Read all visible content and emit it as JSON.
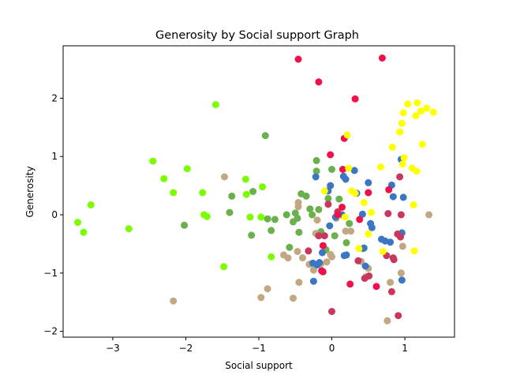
{
  "chart_data": {
    "type": "scatter",
    "title": "Generosity by Social support Graph",
    "xlabel": "Social support",
    "ylabel": "Generosity",
    "xlim": [
      -3.68,
      1.68
    ],
    "ylim": [
      -2.1,
      2.9
    ],
    "xticks": [
      -3,
      -2,
      -1,
      0,
      1
    ],
    "yticks": [
      -2,
      -1,
      0,
      1,
      2
    ],
    "xtick_labels": [
      "−3",
      "−2",
      "−1",
      "0",
      "1"
    ],
    "ytick_labels": [
      "−2",
      "−1",
      "0",
      "1",
      "2"
    ],
    "grid": false,
    "legend": "none",
    "series": [
      {
        "color": "#7cfc00",
        "points": [
          [
            -3.48,
            -0.13
          ],
          [
            -3.4,
            -0.3
          ],
          [
            -3.3,
            0.17
          ],
          [
            -2.78,
            -0.24
          ],
          [
            -2.45,
            0.92
          ],
          [
            -2.3,
            0.62
          ],
          [
            -2.17,
            0.38
          ],
          [
            -1.98,
            0.79
          ],
          [
            -1.77,
            0.38
          ],
          [
            -1.75,
            0.0
          ],
          [
            -1.71,
            -0.03
          ],
          [
            -1.59,
            1.89
          ],
          [
            -1.48,
            -0.89
          ],
          [
            -1.18,
            0.61
          ],
          [
            -1.17,
            0.35
          ],
          [
            -1.12,
            -0.04
          ],
          [
            -0.97,
            -0.04
          ],
          [
            -0.95,
            0.48
          ],
          [
            -0.83,
            -0.72
          ]
        ]
      },
      {
        "color": "#6ab04c",
        "points": [
          [
            -2.02,
            -0.18
          ],
          [
            -1.4,
            0.04
          ],
          [
            -1.37,
            0.32
          ],
          [
            -1.1,
            -0.35
          ],
          [
            -1.08,
            0.4
          ],
          [
            -0.91,
            1.36
          ],
          [
            -0.88,
            -0.07
          ],
          [
            -0.83,
            -0.27
          ],
          [
            -0.78,
            -0.08
          ],
          [
            -0.62,
            0.0
          ],
          [
            -0.58,
            -0.56
          ],
          [
            -0.53,
            -0.12
          ],
          [
            -0.5,
            0.03
          ],
          [
            -0.47,
            -0.06
          ],
          [
            -0.45,
            -0.3
          ],
          [
            -0.42,
            0.36
          ],
          [
            -0.35,
            0.32
          ],
          [
            -0.3,
            0.1
          ],
          [
            -0.27,
            0.0
          ],
          [
            -0.21,
            0.93
          ],
          [
            -0.21,
            0.75
          ],
          [
            -0.18,
            0.09
          ],
          [
            -0.15,
            -0.29
          ],
          [
            -0.08,
            -0.6
          ],
          [
            -0.05,
            0.28
          ],
          [
            0.0,
            0.78
          ],
          [
            0.04,
            -0.36
          ],
          [
            0.1,
            0.27
          ],
          [
            0.2,
            -0.48
          ],
          [
            0.24,
            -0.15
          ],
          [
            0.43,
            -0.58
          ]
        ]
      },
      {
        "color": "#c2a882",
        "points": [
          [
            -2.17,
            -1.48
          ],
          [
            -1.47,
            0.65
          ],
          [
            -0.97,
            -1.42
          ],
          [
            -0.88,
            -1.27
          ],
          [
            -0.66,
            -0.69
          ],
          [
            -0.6,
            -0.74
          ],
          [
            -0.53,
            -1.43
          ],
          [
            -0.47,
            -0.63
          ],
          [
            -0.46,
            0.21
          ],
          [
            -0.46,
            0.14
          ],
          [
            -0.45,
            -1.16
          ],
          [
            -0.4,
            -0.74
          ],
          [
            -0.31,
            -0.85
          ],
          [
            -0.25,
            -0.95
          ],
          [
            -0.22,
            -0.32
          ],
          [
            -0.2,
            -0.09
          ],
          [
            -0.15,
            -0.84
          ],
          [
            -0.07,
            -0.81
          ],
          [
            -0.02,
            -0.68
          ],
          [
            0.0,
            -0.72
          ],
          [
            0.06,
            -0.06
          ],
          [
            0.19,
            -0.28
          ],
          [
            0.26,
            -0.28
          ],
          [
            0.4,
            -0.8
          ],
          [
            0.47,
            -1.06
          ],
          [
            0.5,
            -0.92
          ],
          [
            0.76,
            -1.82
          ],
          [
            0.8,
            -1.16
          ],
          [
            0.95,
            -1.0
          ],
          [
            0.97,
            -0.54
          ],
          [
            1.33,
            0.0
          ]
        ]
      },
      {
        "color": "#3a76c4",
        "points": [
          [
            -0.26,
            -0.83
          ],
          [
            -0.25,
            -1.14
          ],
          [
            -0.22,
            0.65
          ],
          [
            -0.2,
            -0.86
          ],
          [
            -0.17,
            -0.82
          ],
          [
            -0.13,
            -0.65
          ],
          [
            -0.05,
            0.41
          ],
          [
            -0.03,
            -0.19
          ],
          [
            -0.02,
            0.5
          ],
          [
            0.05,
            -0.04
          ],
          [
            0.14,
            0.0
          ],
          [
            0.16,
            0.66
          ],
          [
            0.17,
            -0.7
          ],
          [
            0.19,
            0.61
          ],
          [
            0.2,
            -0.69
          ],
          [
            0.31,
            0.76
          ],
          [
            0.34,
            0.37
          ],
          [
            0.42,
            0.01
          ],
          [
            0.44,
            -0.57
          ],
          [
            0.46,
            -0.88
          ],
          [
            0.5,
            0.38
          ],
          [
            0.5,
            0.55
          ],
          [
            0.53,
            -0.15
          ],
          [
            0.55,
            -0.22
          ],
          [
            0.68,
            -0.42
          ],
          [
            0.73,
            -0.45
          ],
          [
            0.8,
            -0.47
          ],
          [
            0.82,
            0.51
          ],
          [
            0.84,
            0.31
          ],
          [
            0.95,
            0.95
          ],
          [
            0.96,
            -1.12
          ],
          [
            0.96,
            -0.31
          ],
          [
            0.98,
            0.3
          ]
        ]
      },
      {
        "color": "#c8385e",
        "points": [
          [
            -0.32,
            -0.62
          ],
          [
            -0.18,
            -0.36
          ],
          [
            -0.12,
            -0.98
          ],
          [
            -0.1,
            -0.36
          ],
          [
            -0.05,
            0.18
          ],
          [
            0.0,
            -1.66
          ],
          [
            0.08,
            0.05
          ],
          [
            0.36,
            -0.79
          ],
          [
            0.45,
            -1.09
          ],
          [
            0.51,
            -1.05
          ],
          [
            0.75,
            -0.7
          ],
          [
            0.77,
            0.02
          ],
          [
            0.82,
            -1.32
          ],
          [
            0.84,
            -0.74
          ],
          [
            0.85,
            -0.77
          ],
          [
            0.9,
            -0.33
          ],
          [
            0.91,
            -1.73
          ],
          [
            0.93,
            0.65
          ],
          [
            0.94,
            -0.38
          ],
          [
            0.95,
            0.0
          ]
        ]
      },
      {
        "color": "#f0104a",
        "points": [
          [
            -0.46,
            2.67
          ],
          [
            -0.18,
            2.28
          ],
          [
            -0.14,
            -0.96
          ],
          [
            -0.13,
            -0.97
          ],
          [
            -0.12,
            -0.53
          ],
          [
            -0.02,
            1.03
          ],
          [
            0.08,
            0.0
          ],
          [
            0.14,
            0.13
          ],
          [
            0.15,
            0.78
          ],
          [
            0.17,
            1.31
          ],
          [
            0.25,
            -1.19
          ],
          [
            0.32,
            1.99
          ],
          [
            0.38,
            -0.08
          ],
          [
            0.5,
            0.38
          ],
          [
            0.61,
            -1.23
          ],
          [
            0.69,
            2.69
          ],
          [
            0.78,
            0.43
          ]
        ]
      },
      {
        "color": "#ffff00",
        "points": [
          [
            -0.1,
            0.41
          ],
          [
            0.18,
            -0.04
          ],
          [
            0.21,
            1.37
          ],
          [
            0.23,
            0.8
          ],
          [
            0.27,
            0.41
          ],
          [
            0.32,
            0.37
          ],
          [
            0.37,
            -0.58
          ],
          [
            0.44,
            0.21
          ],
          [
            0.5,
            -0.33
          ],
          [
            0.54,
            0.04
          ],
          [
            0.67,
            0.82
          ],
          [
            0.7,
            -0.63
          ],
          [
            0.83,
            1.16
          ],
          [
            0.93,
            1.42
          ],
          [
            0.96,
            1.57
          ],
          [
            0.97,
            0.87
          ],
          [
            0.98,
            1.75
          ],
          [
            0.99,
            0.98
          ],
          [
            1.04,
            1.9
          ],
          [
            1.1,
            0.8
          ],
          [
            1.12,
            0.17
          ],
          [
            1.13,
            -0.62
          ],
          [
            1.15,
            1.7
          ],
          [
            1.16,
            0.75
          ],
          [
            1.17,
            1.92
          ],
          [
            1.22,
            1.78
          ],
          [
            1.24,
            1.21
          ],
          [
            1.3,
            1.83
          ],
          [
            1.39,
            1.76
          ]
        ]
      }
    ]
  }
}
